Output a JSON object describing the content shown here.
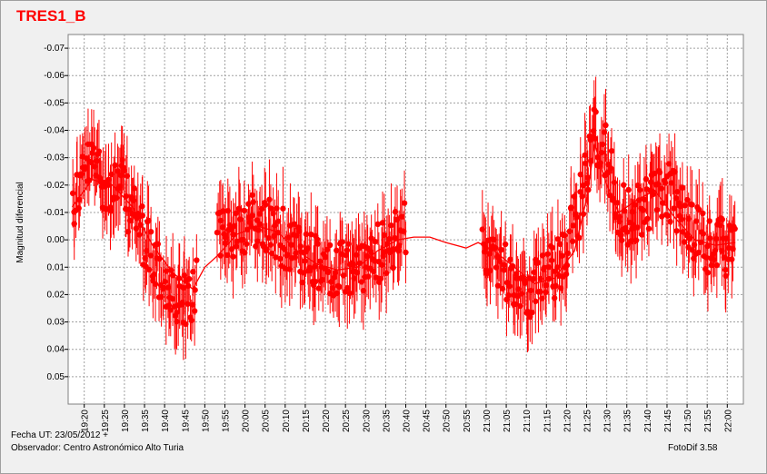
{
  "chart_data": {
    "type": "scatter",
    "title": "TRES1_B",
    "ylabel": "Magnitud diferencial",
    "xlabel": "",
    "y_inverted": true,
    "ylim": [
      0.06,
      -0.075
    ],
    "y_ticks": [
      -0.07,
      -0.06,
      -0.05,
      -0.04,
      -0.03,
      -0.02,
      -0.01,
      0.0,
      0.01,
      0.02,
      0.03,
      0.04,
      0.05
    ],
    "y_tick_labels": [
      "-0.07",
      "-0.06",
      "-0.05",
      "-0.04",
      "-0.03",
      "-0.02",
      "-0.01",
      "0.00",
      "0.01",
      "0.02",
      "0.03",
      "0.04",
      "0.05"
    ],
    "x_ticks_labels": [
      "19:20",
      "19:25",
      "19:30",
      "19:35",
      "19:40",
      "19:45",
      "19:50",
      "19:55",
      "20:00",
      "20:05",
      "20:10",
      "20:15",
      "20:20",
      "20:25",
      "20:30",
      "20:35",
      "20:40",
      "20:45",
      "20:50",
      "20:55",
      "21:00",
      "21:05",
      "21:10",
      "21:15",
      "21:20",
      "21:25",
      "21:30",
      "21:35",
      "21:40",
      "21:45",
      "21:50",
      "21:55",
      "22:00"
    ],
    "x_range_minutes": [
      1156,
      1324
    ],
    "grid": true,
    "point_color": "#ff0000",
    "series": [
      {
        "markers": "filled circle with vertical error bar",
        "segments": [
          {
            "x_start": "19:17",
            "x_end": "19:48",
            "y_pattern": [
              [
                0,
                -0.012
              ],
              [
                3,
                -0.025
              ],
              [
                6,
                -0.028
              ],
              [
                9,
                -0.018
              ],
              [
                12,
                -0.02
              ],
              [
                15,
                -0.01
              ],
              [
                18,
                0.0
              ],
              [
                21,
                0.01
              ],
              [
                24,
                0.02
              ],
              [
                27,
                0.025
              ],
              [
                31,
                0.018
              ]
            ],
            "error": 0.012
          },
          {
            "x_start": "19:53",
            "x_end": "20:40",
            "y_pattern": [
              [
                0,
                0.0
              ],
              [
                5,
                -0.005
              ],
              [
                10,
                -0.006
              ],
              [
                15,
                -0.003
              ],
              [
                20,
                0.005
              ],
              [
                25,
                0.01
              ],
              [
                30,
                0.012
              ],
              [
                35,
                0.01
              ],
              [
                40,
                0.005
              ],
              [
                47,
                -0.003
              ]
            ],
            "error": 0.012
          },
          {
            "x_start": "20:59",
            "x_end": "21:27",
            "y_pattern": [
              [
                0,
                0.0
              ],
              [
                4,
                0.008
              ],
              [
                8,
                0.015
              ],
              [
                12,
                0.018
              ],
              [
                16,
                0.015
              ],
              [
                20,
                0.008
              ],
              [
                24,
                -0.01
              ],
              [
                28,
                -0.04
              ]
            ],
            "error": 0.012
          },
          {
            "x_start": "21:27",
            "x_end": "22:02",
            "y_pattern": [
              [
                0,
                -0.04
              ],
              [
                3,
                -0.03
              ],
              [
                6,
                -0.01
              ],
              [
                10,
                -0.008
              ],
              [
                14,
                -0.015
              ],
              [
                18,
                -0.018
              ],
              [
                22,
                -0.01
              ],
              [
                26,
                0.0
              ],
              [
                30,
                0.003
              ],
              [
                35,
                0.002
              ]
            ],
            "error": 0.012
          }
        ]
      }
    ],
    "trend_line": [
      [
        "19:17",
        -0.012
      ],
      [
        "19:22",
        -0.022
      ],
      [
        "19:27",
        -0.02
      ],
      [
        "19:32",
        -0.012
      ],
      [
        "19:37",
        0.002
      ],
      [
        "19:42",
        0.012
      ],
      [
        "19:47",
        0.018
      ],
      [
        "19:50",
        0.01
      ],
      [
        "19:53",
        0.006
      ],
      [
        "19:58",
        -0.002
      ],
      [
        "20:03",
        -0.005
      ],
      [
        "20:08",
        -0.003
      ],
      [
        "20:13",
        0.004
      ],
      [
        "20:18",
        0.009
      ],
      [
        "20:23",
        0.011
      ],
      [
        "20:28",
        0.01
      ],
      [
        "20:33",
        0.004
      ],
      [
        "20:38",
        0.0
      ],
      [
        "20:42",
        -0.001
      ],
      [
        "20:46",
        -0.001
      ],
      [
        "20:50",
        0.001
      ],
      [
        "20:55",
        0.003
      ],
      [
        "20:58",
        0.001
      ],
      [
        "21:02",
        0.004
      ],
      [
        "21:07",
        0.01
      ],
      [
        "21:12",
        0.016
      ],
      [
        "21:17",
        0.014
      ],
      [
        "21:22",
        0.004
      ],
      [
        "21:25",
        -0.015
      ],
      [
        "21:27",
        -0.035
      ],
      [
        "21:30",
        -0.02
      ],
      [
        "21:33",
        -0.01
      ],
      [
        "21:38",
        -0.015
      ],
      [
        "21:42",
        -0.018
      ],
      [
        "21:47",
        -0.008
      ],
      [
        "21:52",
        0.0
      ],
      [
        "21:57",
        0.002
      ],
      [
        "22:02",
        0.001
      ]
    ]
  },
  "footer": {
    "fecha": "Fecha UT: 23/05/2012 +",
    "observador": "Observador: Centro Astronómico Alto Turia",
    "version": "FotoDif 3.58"
  }
}
